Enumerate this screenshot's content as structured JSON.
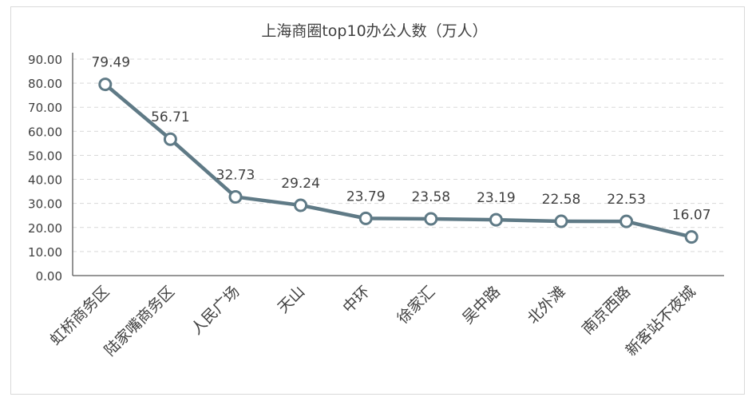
{
  "chart_data": {
    "type": "line",
    "title": "上海商圈top10办公人数（万人）",
    "categories": [
      "虹桥商务区",
      "陆家嘴商务区",
      "人民广场",
      "天山",
      "中环",
      "徐家汇",
      "吴中路",
      "北外滩",
      "南京西路",
      "新客站不夜城"
    ],
    "values": [
      79.49,
      56.71,
      32.73,
      29.24,
      23.79,
      23.58,
      23.19,
      22.58,
      22.53,
      16.07
    ],
    "value_labels": [
      "79.49",
      "56.71",
      "32.73",
      "29.24",
      "23.79",
      "23.58",
      "23.19",
      "22.58",
      "22.53",
      "16.07"
    ],
    "yticks": [
      "0.00",
      "10.00",
      "20.00",
      "30.00",
      "40.00",
      "50.00",
      "60.00",
      "70.00",
      "80.00",
      "90.00"
    ],
    "ylim": [
      0,
      90
    ],
    "grid": true,
    "line_color": "#5f7a86",
    "marker_fill": "#ffffff"
  }
}
